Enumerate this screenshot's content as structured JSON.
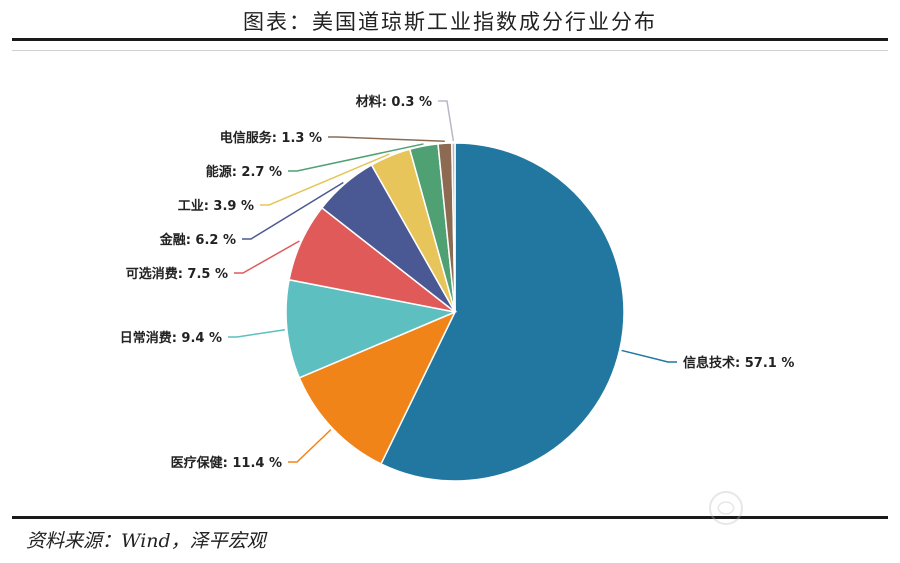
{
  "title": "图表：美国道琼斯工业指数成分行业分布",
  "source": "资料来源：Wind，泽平宏观",
  "chart_data": {
    "type": "pie",
    "title": "图表：美国道琼斯工业指数成分行业分布",
    "unit": "%",
    "slices": [
      {
        "name": "信息技术",
        "value": 57.1,
        "label": "信息技术: 57.1 %",
        "color": "#21779f"
      },
      {
        "name": "医疗保健",
        "value": 11.4,
        "label": "医疗保健: 11.4 %",
        "color": "#f18419"
      },
      {
        "name": "日常消费",
        "value": 9.4,
        "label": "日常消费: 9.4 %",
        "color": "#5dbfbf"
      },
      {
        "name": "可选消费",
        "value": 7.5,
        "label": "可选消费: 7.5 %",
        "color": "#e05a5a"
      },
      {
        "name": "金融",
        "value": 6.2,
        "label": "金融: 6.2 %",
        "color": "#4a5993"
      },
      {
        "name": "工业",
        "value": 3.9,
        "label": "工业: 3.9 %",
        "color": "#e8c55a"
      },
      {
        "name": "能源",
        "value": 2.7,
        "label": "能源: 2.7 %",
        "color": "#4fa073"
      },
      {
        "name": "电信服务",
        "value": 1.3,
        "label": "电信服务: 1.3 %",
        "color": "#8c6b52"
      },
      {
        "name": "材料",
        "value": 0.3,
        "label": "材料: 0.3 %",
        "color": "#b8b8c8"
      }
    ]
  }
}
